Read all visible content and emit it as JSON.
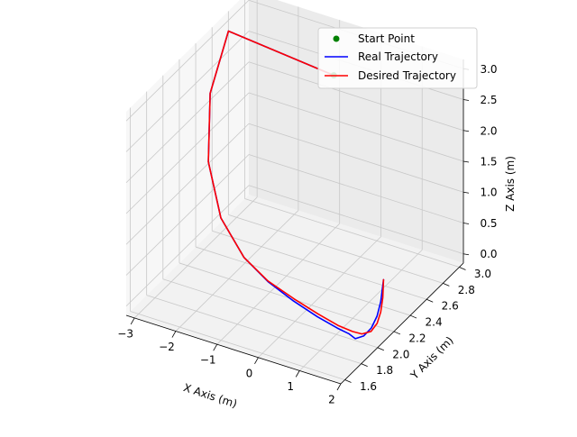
{
  "chart_data": {
    "type": "line3d",
    "title": "",
    "xlabel": "X Axis (m)",
    "ylabel": "Y Axis (m)",
    "zlabel": "Z Axis (m)",
    "xlim": [
      -3.2,
      2.0
    ],
    "ylim": [
      1.55,
      3.05
    ],
    "zlim": [
      -0.15,
      3.15
    ],
    "xticks": [
      "−3",
      "−2",
      "−1",
      "0",
      "1",
      "2"
    ],
    "xtick_values": [
      -3,
      -2,
      -1,
      0,
      1,
      2
    ],
    "yticks": [
      "1.6",
      "1.8",
      "2.0",
      "2.2",
      "2.4",
      "2.6",
      "2.8",
      "3.0"
    ],
    "ytick_values": [
      1.6,
      1.8,
      2.0,
      2.2,
      2.4,
      2.6,
      2.8,
      3.0
    ],
    "zticks": [
      "0.0",
      "0.5",
      "1.0",
      "1.5",
      "2.0",
      "2.5",
      "3.0"
    ],
    "ztick_values": [
      0.0,
      0.5,
      1.0,
      1.5,
      2.0,
      2.5,
      3.0
    ],
    "grid": true,
    "legend_position": "top-right",
    "start_point": {
      "name": "Start Point",
      "color": "#008000",
      "x": -0.25,
      "y": 2.6,
      "z": 3.0
    },
    "series": [
      {
        "name": "Real Trajectory",
        "color": "#0000ff",
        "x": [
          -0.25,
          -3.0,
          -2.75,
          -2.2,
          -1.5,
          -0.8,
          -0.2,
          0.4,
          0.9,
          1.3,
          1.5,
          1.6,
          1.7,
          1.75,
          1.75,
          1.72,
          1.65
        ],
        "y": [
          2.6,
          2.7,
          2.35,
          2.05,
          1.85,
          1.78,
          1.77,
          1.78,
          1.82,
          1.86,
          1.9,
          1.93,
          1.98,
          2.05,
          2.12,
          2.18,
          2.25
        ],
        "z": [
          3.0,
          3.0,
          2.5,
          1.9,
          1.4,
          1.0,
          0.75,
          0.55,
          0.35,
          0.2,
          0.1,
          0.0,
          0.0,
          0.05,
          0.15,
          0.3,
          0.55
        ]
      },
      {
        "name": "Desired Trajectory",
        "color": "#ff0000",
        "x": [
          -0.25,
          -3.0,
          -2.75,
          -2.2,
          -1.5,
          -0.8,
          -0.2,
          0.4,
          0.9,
          1.3,
          1.55,
          1.7,
          1.82,
          1.85,
          1.82,
          1.75,
          1.65
        ],
        "y": [
          2.6,
          2.7,
          2.35,
          2.05,
          1.85,
          1.78,
          1.77,
          1.79,
          1.83,
          1.87,
          1.92,
          1.96,
          2.01,
          2.07,
          2.13,
          2.19,
          2.25
        ],
        "z": [
          3.0,
          3.0,
          2.5,
          1.9,
          1.4,
          1.0,
          0.76,
          0.57,
          0.38,
          0.23,
          0.12,
          0.06,
          0.06,
          0.12,
          0.22,
          0.36,
          0.55
        ]
      }
    ]
  }
}
